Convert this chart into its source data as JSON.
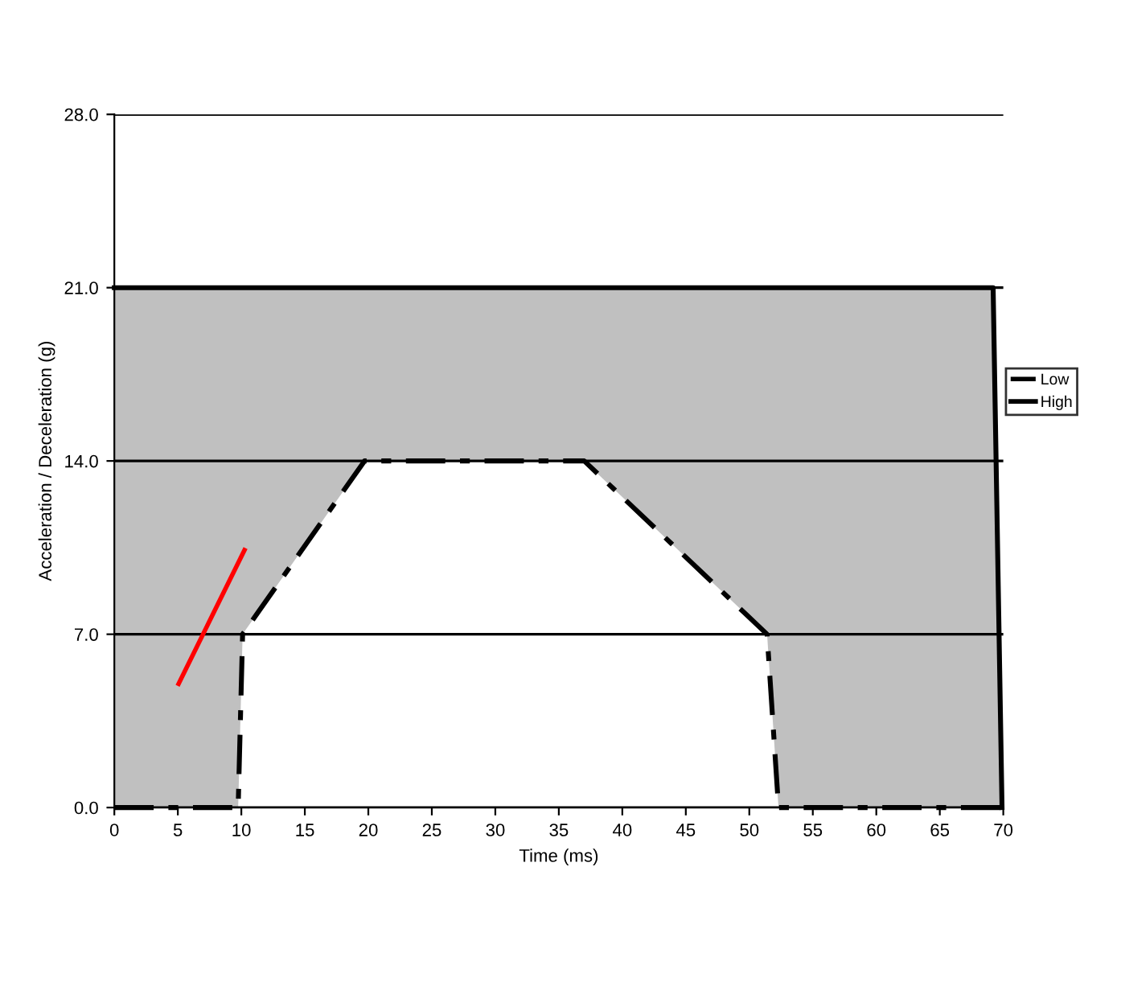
{
  "chart_data": {
    "type": "area",
    "xlabel": "Time (ms)",
    "ylabel": "Acceleration / Deceleration (g)",
    "xlim": [
      0,
      70
    ],
    "ylim": [
      0,
      28
    ],
    "xticks": [
      0,
      5,
      10,
      15,
      20,
      25,
      30,
      35,
      40,
      45,
      50,
      55,
      60,
      65,
      70
    ],
    "yticks": [
      {
        "value": 0,
        "label": "0.0"
      },
      {
        "value": 7,
        "label": "7.0"
      },
      {
        "value": 14,
        "label": "14.0"
      },
      {
        "value": 21,
        "label": "21.0"
      },
      {
        "value": 28,
        "label": "28.0"
      }
    ],
    "grid": "y",
    "legend": "right",
    "series": [
      {
        "name": "High",
        "color": "#c0c0c0",
        "line_style": "solid",
        "x": [
          0,
          69.2,
          69.9
        ],
        "values": [
          21,
          21,
          0
        ]
      },
      {
        "name": "Low",
        "color": "#ffffff",
        "line_style": "dashdot",
        "x": [
          0,
          9.75,
          10.1,
          19.7,
          37.0,
          51.4,
          52.3,
          70
        ],
        "values": [
          0,
          0,
          7,
          14,
          14,
          7,
          0,
          0
        ]
      },
      {
        "type": "line",
        "color": "#ff0000",
        "line_style": "solid",
        "x": [
          5.06,
          10.25
        ],
        "values": [
          5.0,
          10.4
        ]
      }
    ]
  }
}
